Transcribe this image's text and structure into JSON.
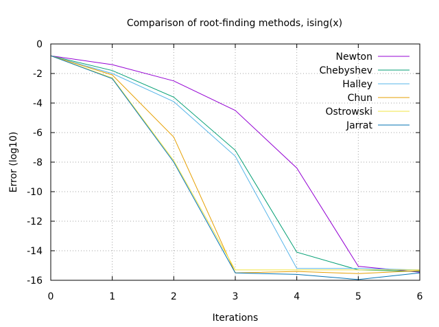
{
  "chart_data": {
    "type": "line",
    "title": "Comparison of root-finding methods, ising(x)",
    "xlabel": "Iterations",
    "ylabel": "Error (log10)",
    "xlim": [
      0,
      6
    ],
    "ylim": [
      -16,
      0
    ],
    "x_ticks": [
      "0",
      "1",
      "2",
      "3",
      "4",
      "5",
      "6"
    ],
    "y_ticks": [
      "0",
      "-2",
      "-4",
      "-6",
      "-8",
      "-10",
      "-12",
      "-14",
      "-16"
    ],
    "grid": true,
    "legend_position": "top-right",
    "x": [
      0,
      1,
      2,
      3,
      4,
      5,
      6
    ],
    "series": [
      {
        "name": "Newton",
        "color": "#9400d3",
        "values": [
          -0.8,
          -1.4,
          -2.5,
          -4.5,
          -8.4,
          -15.05,
          -15.45
        ]
      },
      {
        "name": "Chebyshev",
        "color": "#009e73",
        "values": [
          -0.8,
          -1.8,
          -3.6,
          -7.2,
          -14.1,
          -15.3,
          -15.4
        ]
      },
      {
        "name": "Halley",
        "color": "#56b4e9",
        "values": [
          -0.8,
          -2.0,
          -3.9,
          -7.6,
          -15.2,
          -15.2,
          -15.3
        ]
      },
      {
        "name": "Chun",
        "color": "#e69f00",
        "values": [
          -0.8,
          -2.1,
          -6.3,
          -15.5,
          -15.4,
          -15.55,
          -15.35
        ]
      },
      {
        "name": "Ostrowski",
        "color": "#f0e442",
        "values": [
          -0.8,
          -2.3,
          -7.9,
          -15.3,
          -15.3,
          -15.3,
          -15.3
        ]
      },
      {
        "name": "Jarrat",
        "color": "#0072b2",
        "values": [
          -0.8,
          -2.35,
          -8.0,
          -15.5,
          -15.6,
          -15.95,
          -15.5
        ]
      }
    ]
  }
}
